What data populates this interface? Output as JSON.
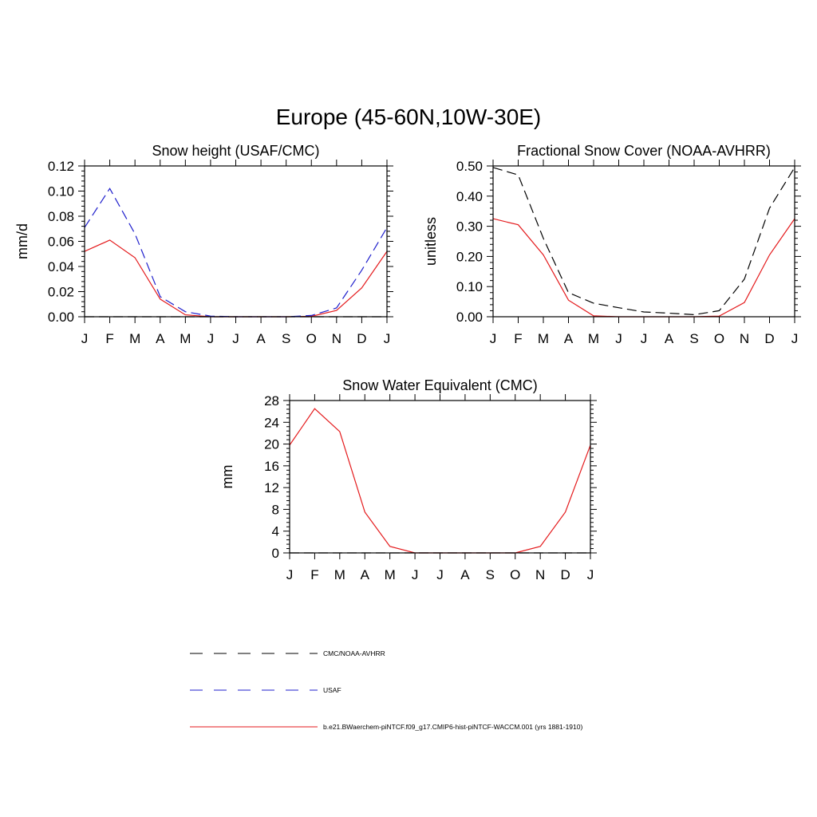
{
  "figure": {
    "title": "Europe (45-60N,10W-30E)"
  },
  "colors": {
    "model": "#e41a1c",
    "usaf": "#1f1fcc",
    "obs": "#000000"
  },
  "legend": {
    "items": [
      {
        "label": "CMC/NOAA-AVHRR",
        "color": "#000000",
        "style": "dashed"
      },
      {
        "label": "USAF",
        "color": "#1f1fcc",
        "style": "dashed"
      },
      {
        "label": "b.e21.BWaerchem-piNTCF.f09_g17.CMIP6-hist-piNTCF-WACCM.001 (yrs 1881-1910)",
        "color": "#e41a1c",
        "style": "solid"
      }
    ]
  },
  "chart_data": [
    {
      "type": "line",
      "title": "Snow height (USAF/CMC)",
      "xlabel": "",
      "ylabel": "mm/d",
      "categories": [
        "J",
        "F",
        "M",
        "A",
        "M",
        "J",
        "J",
        "A",
        "S",
        "O",
        "N",
        "D",
        "J"
      ],
      "ylim": [
        0,
        0.12
      ],
      "yticks": [
        "0.00",
        "0.02",
        "0.04",
        "0.06",
        "0.08",
        "0.10",
        "0.12"
      ],
      "yticks_values": [
        0,
        0.02,
        0.04,
        0.06,
        0.08,
        0.1,
        0.12
      ],
      "series": [
        {
          "name": "b.e21.BWaerchem-piNTCF.f09_g17.CMIP6-hist-piNTCF-WACCM.001 (yrs 1881-1910)",
          "color": "#e41a1c",
          "style": "solid",
          "values": [
            0.052,
            0.061,
            0.047,
            0.014,
            0.0015,
            0.0,
            0.0,
            0.0,
            0.0,
            0.0003,
            0.005,
            0.023,
            0.052
          ]
        },
        {
          "name": "USAF",
          "color": "#1f1fcc",
          "style": "dashed",
          "values": [
            0.071,
            0.102,
            0.066,
            0.016,
            0.004,
            0.0005,
            0.0,
            0.0,
            0.0,
            0.001,
            0.007,
            0.037,
            0.071
          ]
        },
        {
          "name": "CMC/NOAA-AVHRR",
          "color": "#000000",
          "style": "dashed",
          "values": [
            0.0,
            0.0,
            0.0,
            0.0,
            0.0,
            0.0,
            0.0,
            0.0,
            0.0,
            0.0,
            0.0,
            0.0,
            0.0
          ]
        }
      ]
    },
    {
      "type": "line",
      "title": "Fractional Snow Cover (NOAA-AVHRR)",
      "xlabel": "",
      "ylabel": "unitless",
      "categories": [
        "J",
        "F",
        "M",
        "A",
        "M",
        "J",
        "J",
        "A",
        "S",
        "O",
        "N",
        "D",
        "J"
      ],
      "ylim": [
        0,
        0.5
      ],
      "yticks": [
        "0.00",
        "0.10",
        "0.20",
        "0.30",
        "0.40",
        "0.50"
      ],
      "yticks_values": [
        0,
        0.1,
        0.2,
        0.3,
        0.4,
        0.5
      ],
      "series": [
        {
          "name": "b.e21.BWaerchem-piNTCF.f09_g17.CMIP6-hist-piNTCF-WACCM.001 (yrs 1881-1910)",
          "color": "#e41a1c",
          "style": "solid",
          "values": [
            0.325,
            0.305,
            0.205,
            0.055,
            0.003,
            0.0,
            0.0,
            0.0,
            0.0,
            0.002,
            0.047,
            0.205,
            0.325
          ]
        },
        {
          "name": "CMC/NOAA-AVHRR",
          "color": "#000000",
          "style": "dashed",
          "values": [
            0.495,
            0.47,
            0.26,
            0.08,
            0.045,
            0.03,
            0.016,
            0.012,
            0.007,
            0.02,
            0.125,
            0.36,
            0.495
          ]
        }
      ]
    },
    {
      "type": "line",
      "title": "Snow Water Equivalent (CMC)",
      "xlabel": "",
      "ylabel": "mm",
      "categories": [
        "J",
        "F",
        "M",
        "A",
        "M",
        "J",
        "J",
        "A",
        "S",
        "O",
        "N",
        "D",
        "J"
      ],
      "ylim": [
        0,
        28
      ],
      "yticks": [
        "0",
        "4",
        "8",
        "12",
        "16",
        "20",
        "24",
        "28"
      ],
      "yticks_values": [
        0,
        4,
        8,
        12,
        16,
        20,
        24,
        28
      ],
      "series": [
        {
          "name": "b.e21.BWaerchem-piNTCF.f09_g17.CMIP6-hist-piNTCF-WACCM.001 (yrs 1881-1910)",
          "color": "#e41a1c",
          "style": "solid",
          "values": [
            19.8,
            26.5,
            22.3,
            7.5,
            1.2,
            0.0,
            0.0,
            0.0,
            0.0,
            0.0,
            1.2,
            7.5,
            19.8
          ]
        },
        {
          "name": "CMC/NOAA-AVHRR",
          "color": "#000000",
          "style": "dashed",
          "values": [
            0.0,
            0.0,
            0.0,
            0.0,
            0.0,
            0.0,
            0.0,
            0.0,
            0.0,
            0.0,
            0.0,
            0.0,
            0.0
          ]
        }
      ]
    }
  ]
}
